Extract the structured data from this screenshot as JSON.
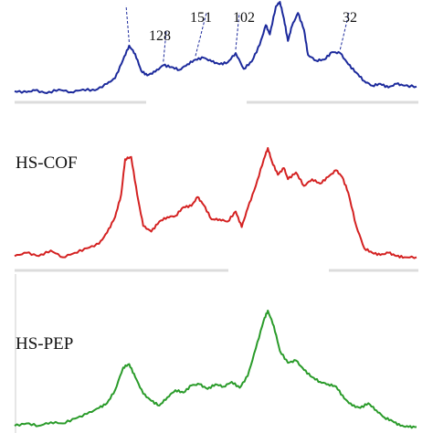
{
  "chart_data": [
    {
      "type": "line",
      "panel": "top",
      "color": "#1c2a9c",
      "x_domain": [
        0,
        100
      ],
      "y_domain": [
        0,
        100
      ],
      "annotations": [
        "128",
        "151",
        "102",
        "32"
      ],
      "values": [
        [
          0,
          4
        ],
        [
          3,
          3
        ],
        [
          5,
          5
        ],
        [
          8,
          2
        ],
        [
          11,
          6
        ],
        [
          14,
          3
        ],
        [
          17,
          6
        ],
        [
          20,
          5
        ],
        [
          23,
          12
        ],
        [
          25,
          18
        ],
        [
          27,
          38
        ],
        [
          28.5,
          53
        ],
        [
          30,
          44
        ],
        [
          31.5,
          26
        ],
        [
          33,
          21
        ],
        [
          35,
          25
        ],
        [
          37,
          32
        ],
        [
          39,
          30
        ],
        [
          41,
          27
        ],
        [
          43,
          33
        ],
        [
          45,
          38
        ],
        [
          47,
          40
        ],
        [
          49,
          36
        ],
        [
          51,
          33
        ],
        [
          53,
          35
        ],
        [
          55,
          45
        ],
        [
          57,
          28
        ],
        [
          59,
          36
        ],
        [
          61,
          54
        ],
        [
          62.5,
          75
        ],
        [
          63.5,
          65
        ],
        [
          65,
          95
        ],
        [
          66,
          100
        ],
        [
          67,
          82
        ],
        [
          68,
          58
        ],
        [
          69,
          74
        ],
        [
          70.5,
          88
        ],
        [
          72,
          70
        ],
        [
          73,
          43
        ],
        [
          75,
          37
        ],
        [
          77,
          38
        ],
        [
          79,
          46
        ],
        [
          81,
          45
        ],
        [
          83,
          33
        ],
        [
          85,
          24
        ],
        [
          87,
          15
        ],
        [
          89,
          10
        ],
        [
          91,
          12
        ],
        [
          93,
          8
        ],
        [
          95,
          12
        ],
        [
          97,
          10
        ],
        [
          100,
          9
        ]
      ]
    },
    {
      "type": "line",
      "panel": "middle",
      "label": "HS-COF",
      "color": "#d42222",
      "x_domain": [
        0,
        100
      ],
      "y_domain": [
        0,
        100
      ],
      "values": [
        [
          0,
          3
        ],
        [
          3,
          6
        ],
        [
          6,
          3
        ],
        [
          9,
          8
        ],
        [
          12,
          2
        ],
        [
          15,
          6
        ],
        [
          18,
          10
        ],
        [
          21,
          14
        ],
        [
          23,
          24
        ],
        [
          25,
          38
        ],
        [
          26.5,
          58
        ],
        [
          27.5,
          90
        ],
        [
          29,
          92
        ],
        [
          30.5,
          58
        ],
        [
          32,
          30
        ],
        [
          34,
          25
        ],
        [
          36,
          34
        ],
        [
          38,
          38
        ],
        [
          40,
          39
        ],
        [
          42,
          47
        ],
        [
          44,
          48
        ],
        [
          45.5,
          56
        ],
        [
          47,
          49
        ],
        [
          49,
          36
        ],
        [
          51,
          36
        ],
        [
          53,
          34
        ],
        [
          55,
          43
        ],
        [
          56.5,
          29
        ],
        [
          58,
          46
        ],
        [
          60,
          66
        ],
        [
          62,
          90
        ],
        [
          63,
          100
        ],
        [
          64,
          88
        ],
        [
          65.5,
          76
        ],
        [
          67,
          82
        ],
        [
          68,
          72
        ],
        [
          70,
          78
        ],
        [
          72,
          66
        ],
        [
          74,
          72
        ],
        [
          76,
          68
        ],
        [
          78,
          74
        ],
        [
          80,
          80
        ],
        [
          81.5,
          74
        ],
        [
          83,
          60
        ],
        [
          85,
          30
        ],
        [
          87,
          10
        ],
        [
          89,
          6
        ],
        [
          91,
          4
        ],
        [
          93,
          6
        ],
        [
          95,
          3
        ],
        [
          97,
          2
        ],
        [
          100,
          2
        ]
      ]
    },
    {
      "type": "line",
      "panel": "bottom",
      "label": "HS-PEP",
      "color": "#2a9b2a",
      "x_domain": [
        0,
        100
      ],
      "y_domain": [
        0,
        100
      ],
      "values": [
        [
          0,
          3
        ],
        [
          3,
          5
        ],
        [
          6,
          3
        ],
        [
          9,
          6
        ],
        [
          12,
          5
        ],
        [
          15,
          9
        ],
        [
          18,
          13
        ],
        [
          21,
          18
        ],
        [
          23,
          22
        ],
        [
          25,
          33
        ],
        [
          27,
          52
        ],
        [
          28.5,
          55
        ],
        [
          30,
          44
        ],
        [
          32,
          30
        ],
        [
          34,
          24
        ],
        [
          36,
          20
        ],
        [
          38,
          27
        ],
        [
          40,
          33
        ],
        [
          42,
          31
        ],
        [
          44,
          37
        ],
        [
          46,
          38
        ],
        [
          48,
          34
        ],
        [
          50,
          38
        ],
        [
          52,
          36
        ],
        [
          54,
          40
        ],
        [
          56,
          35
        ],
        [
          58,
          45
        ],
        [
          60,
          68
        ],
        [
          62,
          92
        ],
        [
          63,
          100
        ],
        [
          64.5,
          87
        ],
        [
          66,
          66
        ],
        [
          68,
          56
        ],
        [
          70,
          58
        ],
        [
          72,
          50
        ],
        [
          74,
          44
        ],
        [
          76,
          40
        ],
        [
          78,
          38
        ],
        [
          80,
          36
        ],
        [
          82,
          26
        ],
        [
          84,
          20
        ],
        [
          86,
          18
        ],
        [
          88,
          22
        ],
        [
          90,
          16
        ],
        [
          92,
          10
        ],
        [
          94,
          7
        ],
        [
          96,
          3
        ],
        [
          98,
          2
        ],
        [
          100,
          2
        ]
      ]
    }
  ]
}
